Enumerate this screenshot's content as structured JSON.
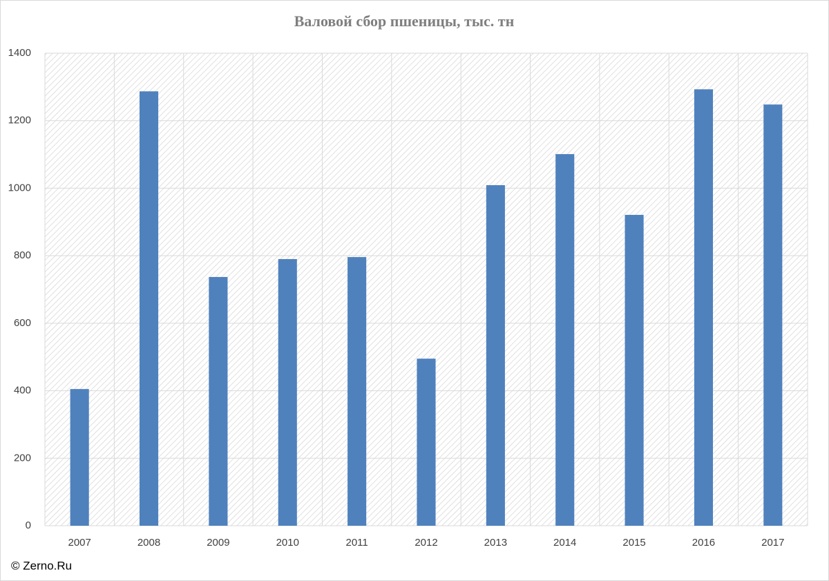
{
  "chart_data": {
    "type": "bar",
    "title": "Валовой сбор пшеницы, тыс. тн",
    "categories": [
      "2007",
      "2008",
      "2009",
      "2010",
      "2011",
      "2012",
      "2013",
      "2014",
      "2015",
      "2016",
      "2017"
    ],
    "values": [
      405,
      1287,
      737,
      790,
      796,
      495,
      1009,
      1101,
      921,
      1293,
      1248
    ],
    "color": "#4f81bd",
    "ylim": [
      0,
      1400
    ],
    "yticks": [
      0,
      200,
      400,
      600,
      800,
      1000,
      1200,
      1400
    ],
    "grid": true,
    "source": "© Zerno.Ru"
  }
}
